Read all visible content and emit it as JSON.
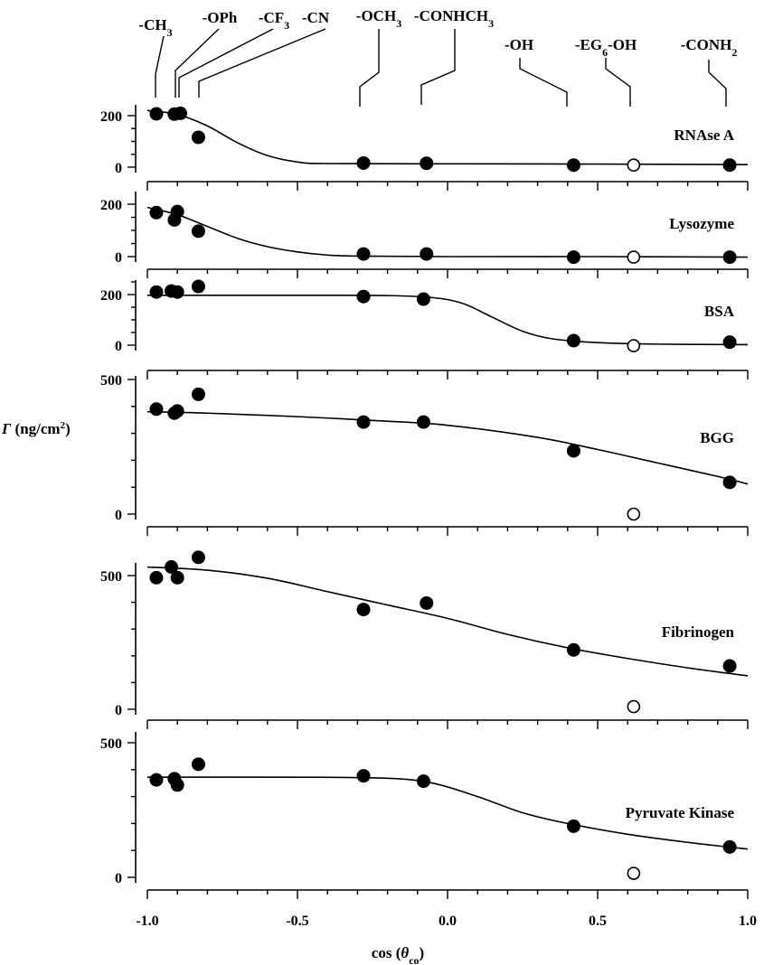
{
  "chart_data": {
    "type": "scatter",
    "xlabel": "cos (θco)",
    "ylabel": "Γ (ng/cm2)",
    "xlim": [
      -1.0,
      1.0
    ],
    "x_ticks": [
      "-1.0",
      "-0.5",
      "0.0",
      "0.5",
      "1.0"
    ],
    "x_tick_values": [
      -1.0,
      -0.5,
      0.0,
      0.5,
      1.0
    ],
    "marker_legend": {
      "filled": "closed circles",
      "open": "open circle (-EG6-OH)"
    },
    "surface_groups": [
      {
        "label": "-CH3",
        "x": -0.97
      },
      {
        "label": "-OPh",
        "x": -0.91
      },
      {
        "label": "-CF3",
        "x": -0.9
      },
      {
        "label": "-CN",
        "x": -0.82
      },
      {
        "label": "-OCH3",
        "x": -0.28
      },
      {
        "label": "-CONHCH3",
        "x": -0.08
      },
      {
        "label": "-OH",
        "x": 0.4
      },
      {
        "label": "-EG6-OH",
        "x": 0.62
      },
      {
        "label": "-CONH2",
        "x": 0.93
      }
    ],
    "panels": [
      {
        "name": "RNAse A",
        "ylim": [
          0,
          240
        ],
        "y_ticks": [
          0,
          200
        ],
        "points": [
          [
            -0.97,
            207
          ],
          [
            -0.91,
            206
          ],
          [
            -0.89,
            209
          ],
          [
            -0.83,
            116
          ],
          [
            -0.28,
            16
          ],
          [
            -0.07,
            15
          ],
          [
            0.42,
            8
          ],
          [
            0.94,
            8
          ]
        ],
        "open_points": [
          [
            0.62,
            8
          ]
        ],
        "fit": [
          [
            -1.0,
            220
          ],
          [
            -0.9,
            205
          ],
          [
            -0.8,
            160
          ],
          [
            -0.7,
            95
          ],
          [
            -0.6,
            45
          ],
          [
            -0.5,
            20
          ],
          [
            -0.4,
            14
          ],
          [
            0.0,
            13
          ],
          [
            0.5,
            12
          ],
          [
            1.0,
            10
          ]
        ]
      },
      {
        "name": "Lysozyme",
        "ylim": [
          0,
          210
        ],
        "y_ticks": [
          0,
          200
        ],
        "points": [
          [
            -0.97,
            168
          ],
          [
            -0.91,
            140
          ],
          [
            -0.9,
            172
          ],
          [
            -0.83,
            97
          ],
          [
            -0.28,
            10
          ],
          [
            -0.07,
            10
          ],
          [
            0.42,
            -2
          ],
          [
            0.94,
            -2
          ]
        ],
        "open_points": [
          [
            0.62,
            -2
          ]
        ],
        "fit": [
          [
            -1.0,
            188
          ],
          [
            -0.9,
            160
          ],
          [
            -0.8,
            115
          ],
          [
            -0.7,
            70
          ],
          [
            -0.6,
            38
          ],
          [
            -0.5,
            18
          ],
          [
            -0.4,
            6
          ],
          [
            -0.3,
            2
          ],
          [
            0.0,
            0
          ],
          [
            0.5,
            0
          ],
          [
            1.0,
            -2
          ]
        ]
      },
      {
        "name": "BSA",
        "ylim": [
          0,
          240
        ],
        "y_ticks": [
          0,
          200
        ],
        "points": [
          [
            -0.97,
            210
          ],
          [
            -0.92,
            214
          ],
          [
            -0.9,
            210
          ],
          [
            -0.83,
            232
          ],
          [
            -0.28,
            192
          ],
          [
            -0.08,
            182
          ],
          [
            0.42,
            18
          ],
          [
            0.94,
            12
          ]
        ],
        "open_points": [
          [
            0.62,
            -2
          ]
        ],
        "fit": [
          [
            -1.0,
            197
          ],
          [
            -0.5,
            197
          ],
          [
            -0.2,
            196
          ],
          [
            -0.05,
            188
          ],
          [
            0.05,
            165
          ],
          [
            0.15,
            110
          ],
          [
            0.25,
            55
          ],
          [
            0.35,
            25
          ],
          [
            0.5,
            10
          ],
          [
            0.7,
            4
          ],
          [
            1.0,
            2
          ]
        ]
      },
      {
        "name": "BGG",
        "ylim": [
          0,
          560
        ],
        "y_ticks": [
          0,
          500
        ],
        "points": [
          [
            -0.97,
            390
          ],
          [
            -0.91,
            375
          ],
          [
            -0.9,
            383
          ],
          [
            -0.83,
            445
          ],
          [
            -0.28,
            342
          ],
          [
            -0.08,
            342
          ],
          [
            0.42,
            235
          ],
          [
            0.94,
            118
          ]
        ],
        "open_points": [
          [
            0.62,
            0
          ]
        ],
        "fit": [
          [
            -1.0,
            380
          ],
          [
            -0.8,
            375
          ],
          [
            -0.5,
            362
          ],
          [
            -0.2,
            345
          ],
          [
            0.0,
            330
          ],
          [
            0.3,
            285
          ],
          [
            0.5,
            240
          ],
          [
            0.7,
            190
          ],
          [
            0.9,
            140
          ],
          [
            1.0,
            112
          ]
        ]
      },
      {
        "name": "Fibrinogen",
        "ylim": [
          0,
          620
        ],
        "y_ticks": [
          0,
          500
        ],
        "points": [
          [
            -0.97,
            492
          ],
          [
            -0.92,
            532
          ],
          [
            -0.9,
            492
          ],
          [
            -0.83,
            568
          ],
          [
            -0.28,
            373
          ],
          [
            -0.07,
            397
          ],
          [
            0.42,
            222
          ],
          [
            0.94,
            162
          ]
        ],
        "open_points": [
          [
            0.62,
            10
          ]
        ],
        "fit": [
          [
            -1.0,
            532
          ],
          [
            -0.8,
            520
          ],
          [
            -0.6,
            490
          ],
          [
            -0.4,
            440
          ],
          [
            -0.2,
            390
          ],
          [
            0.0,
            340
          ],
          [
            0.2,
            280
          ],
          [
            0.4,
            230
          ],
          [
            0.6,
            190
          ],
          [
            0.8,
            155
          ],
          [
            1.0,
            125
          ]
        ]
      },
      {
        "name": "Pyruvate Kinase",
        "ylim": [
          0,
          560
        ],
        "y_ticks": [
          0,
          500
        ],
        "points": [
          [
            -0.97,
            362
          ],
          [
            -0.91,
            366
          ],
          [
            -0.9,
            343
          ],
          [
            -0.83,
            420
          ],
          [
            -0.28,
            377
          ],
          [
            -0.08,
            357
          ],
          [
            0.42,
            190
          ],
          [
            0.94,
            113
          ]
        ],
        "open_points": [
          [
            0.62,
            15
          ]
        ],
        "fit": [
          [
            -1.0,
            372
          ],
          [
            -0.5,
            372
          ],
          [
            -0.2,
            368
          ],
          [
            -0.05,
            350
          ],
          [
            0.1,
            300
          ],
          [
            0.25,
            240
          ],
          [
            0.4,
            200
          ],
          [
            0.6,
            160
          ],
          [
            0.8,
            130
          ],
          [
            1.0,
            105
          ]
        ]
      }
    ]
  }
}
